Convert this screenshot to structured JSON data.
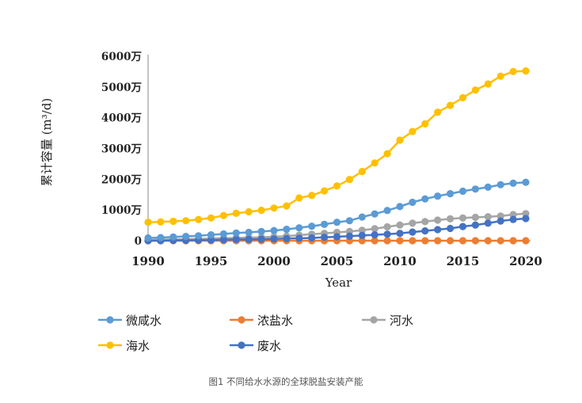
{
  "chart_data": {
    "type": "line",
    "title": "",
    "xlabel": "Year",
    "ylabel": "累计容量 (m³/d)",
    "ylim": [
      0,
      6000
    ],
    "xlim": [
      1990,
      2020
    ],
    "x_ticks": [
      "1990",
      "1995",
      "2000",
      "2005",
      "2010",
      "2015",
      "2020"
    ],
    "y_ticks": [
      "0",
      "1000万",
      "2000万",
      "3000万",
      "4000万",
      "5000万",
      "6000万"
    ],
    "y_tick_values": [
      0,
      1000,
      2000,
      3000,
      4000,
      5000,
      6000
    ],
    "unit_note": "values in 万 m³/d",
    "x": [
      1990,
      1991,
      1992,
      1993,
      1994,
      1995,
      1996,
      1997,
      1998,
      1999,
      2000,
      2001,
      2002,
      2003,
      2004,
      2005,
      2006,
      2007,
      2008,
      2009,
      2010,
      2011,
      2012,
      2013,
      2014,
      2015,
      2016,
      2017,
      2018,
      2019,
      2020
    ],
    "series": [
      {
        "name": "微咸水",
        "color": "#5B9BD5",
        "values": [
          90,
          100,
          120,
          140,
          160,
          190,
          220,
          250,
          270,
          300,
          330,
          370,
          420,
          470,
          530,
          600,
          650,
          770,
          870,
          980,
          1110,
          1250,
          1360,
          1450,
          1530,
          1610,
          1680,
          1740,
          1820,
          1870,
          1900
        ]
      },
      {
        "name": "浓盐水",
        "color": "#ED7D31",
        "values": [
          0,
          0,
          0,
          0,
          0,
          0,
          0,
          0,
          0,
          0,
          0,
          0,
          0,
          0,
          0,
          0,
          0,
          0,
          0,
          0,
          0,
          0,
          0,
          0,
          0,
          0,
          0,
          0,
          0,
          0,
          0
        ]
      },
      {
        "name": "河水",
        "color": "#A5A5A5",
        "values": [
          20,
          30,
          40,
          50,
          60,
          70,
          80,
          90,
          100,
          110,
          130,
          150,
          180,
          210,
          240,
          270,
          300,
          340,
          390,
          450,
          510,
          570,
          620,
          670,
          710,
          740,
          760,
          780,
          800,
          850,
          880
        ]
      },
      {
        "name": "海水",
        "color": "#FFC000",
        "values": [
          600,
          610,
          630,
          650,
          690,
          740,
          820,
          890,
          940,
          990,
          1060,
          1130,
          1390,
          1470,
          1620,
          1780,
          1990,
          2250,
          2530,
          2830,
          3270,
          3550,
          3800,
          4180,
          4400,
          4650,
          4900,
          5100,
          5350,
          5500,
          5520
        ]
      },
      {
        "name": "废水",
        "color": "#4472C4",
        "values": [
          0,
          0,
          10,
          10,
          20,
          20,
          30,
          40,
          40,
          50,
          60,
          70,
          80,
          90,
          110,
          130,
          150,
          170,
          190,
          210,
          240,
          280,
          320,
          360,
          400,
          460,
          510,
          570,
          640,
          690,
          720
        ]
      }
    ],
    "legend": {
      "placement": "bottom",
      "order": [
        "微咸水",
        "浓盐水",
        "河水",
        "海水",
        "废水"
      ]
    }
  },
  "caption": "图1  不同给水水源的全球脱盐安装产能"
}
